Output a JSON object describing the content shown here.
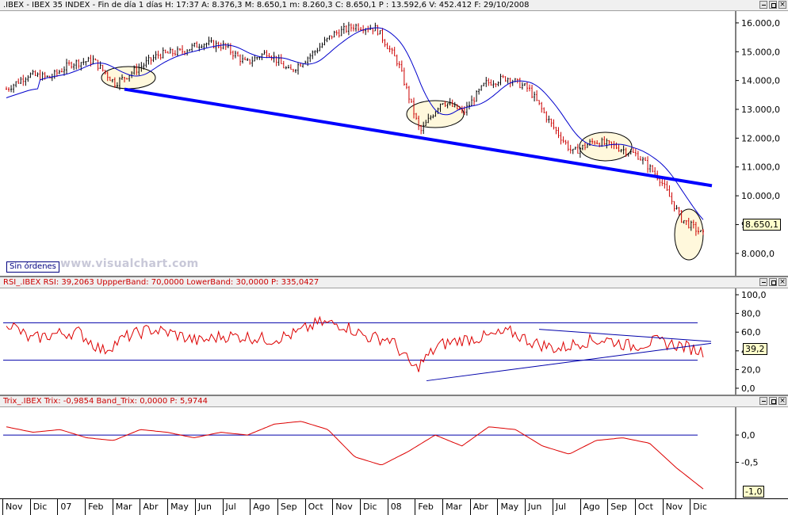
{
  "price_panel": {
    "header": ".IBEX - IBEX 35 INDEX - Fin de día 1 días H: 17:37  A: 8.376,3  M: 8.650,1  m: 8.260,3  C: 8.650,1  P : 13.592,6  V: 452.412  F: 29/10/2008",
    "y_ticks": [
      "16.000,0",
      "15.000,0",
      "14.000,0",
      "13.000,0",
      "12.000,0",
      "11.000,0",
      "10.000,0",
      "9.000,0",
      "8.000,0"
    ],
    "last_price_label": "8.650,1",
    "button_label": "Sin órdenes",
    "watermark": "www.visualchart.com"
  },
  "rsi_panel": {
    "header": "RSI_.IBEX  RSI: 39,2063  UppperBand: 70,0000  LowerBand: 30,0000  P: 335,0427",
    "y_ticks": [
      "100,0",
      "80,0",
      "60,0",
      "40,0",
      "20,0",
      "0,0"
    ],
    "last_value_label": "39,2"
  },
  "trix_panel": {
    "header": "Trix_.IBEX  Trix: -0,9854  Band_Trix: 0,0000  P: 5,9744",
    "y_ticks": [
      "0,0",
      "-0,5"
    ],
    "last_value_label": "-1,0"
  },
  "x_axis": {
    "months": [
      "Nov",
      "Dic",
      "07",
      "Feb",
      "Mar",
      "Abr",
      "May",
      "Jun",
      "Jul",
      "Ago",
      "Sep",
      "Oct",
      "Nov",
      "Dic",
      "08",
      "Feb",
      "Mar",
      "Abr",
      "May",
      "Jun",
      "Jul",
      "Ago",
      "Sep",
      "Oct",
      "Nov",
      "Dic"
    ]
  },
  "colors": {
    "candle_up": "#000000",
    "candle_down": "#cc0000",
    "moving_average": "#0000cc",
    "trendline": "#0000ff",
    "rsi_line": "#dd0000",
    "trix_line": "#dd0000",
    "band_line": "#0000aa",
    "highlight_ellipse": "#fff8dc"
  },
  "chart_data": {
    "type": "line",
    "title": ".IBEX - IBEX 35 INDEX",
    "ylim": [
      7500,
      16300
    ],
    "series": [
      {
        "name": "IBEX 35",
        "values": [
          13700,
          14200,
          14100,
          14600,
          14700,
          13900,
          14400,
          14900,
          15000,
          15300,
          15200,
          14600,
          15000,
          14300,
          14900,
          15600,
          15900,
          15800,
          14600,
          12200,
          13300,
          12900,
          13900,
          14100,
          13700,
          12500,
          11500,
          11900,
          11700,
          11400,
          10600,
          9200,
          8650
        ]
      },
      {
        "name": "RSI",
        "values": [
          72,
          52,
          58,
          60,
          40,
          55,
          63,
          58,
          50,
          56,
          55,
          52,
          58,
          70,
          68,
          55,
          52,
          20,
          46,
          52,
          55,
          60,
          48,
          42,
          50,
          52,
          45,
          50,
          46,
          39.2
        ]
      },
      {
        "name": "Trix",
        "values": [
          0.15,
          0.05,
          0.1,
          -0.05,
          -0.1,
          0.1,
          0.05,
          -0.05,
          0.05,
          0.0,
          0.2,
          0.25,
          0.1,
          -0.4,
          -0.55,
          -0.3,
          0.0,
          -0.2,
          0.15,
          0.1,
          -0.2,
          -0.35,
          -0.1,
          -0.05,
          -0.15,
          -0.6,
          -0.9854
        ]
      }
    ],
    "bands": {
      "rsi_upper": 70,
      "rsi_lower": 30,
      "trix": 0
    }
  }
}
